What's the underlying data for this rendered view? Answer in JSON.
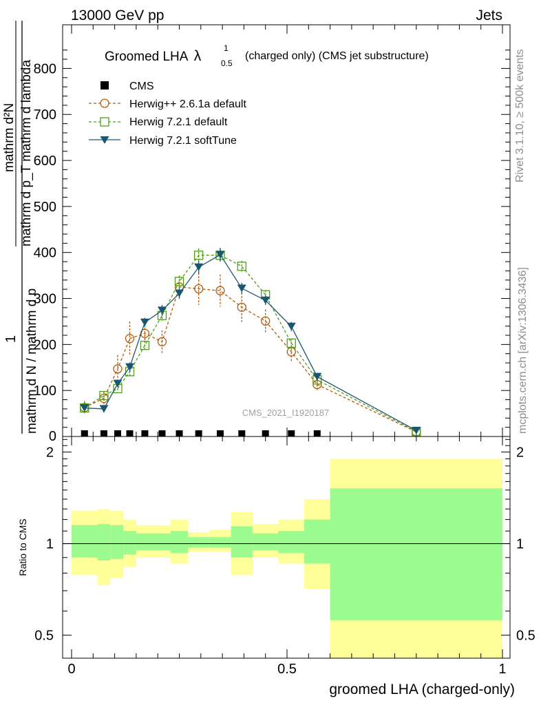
{
  "header": {
    "left": "13000 GeV pp",
    "right": "Jets"
  },
  "side_labels": {
    "top": "Rivet 3.1.10, ≥ 500k events",
    "bottom": "mcplots.cern.ch [arXiv:1306.3436]"
  },
  "watermark": "CMS_2021_I1920187",
  "colors": {
    "herwig_old": "#b25a0a",
    "herwig_default": "#4d9e16",
    "herwig_soft": "#1b5670",
    "band_inner": "#9cfb8e",
    "band_outer": "#ffff99"
  },
  "chart_data": [
    {
      "type": "line",
      "panel": "main",
      "title": {
        "main": "Groomed LHA",
        "symbol": "λ",
        "sup": "1",
        "sub": "0.5",
        "suffix": "(charged only) (CMS jet substructure)"
      },
      "xlabel": "groomed LHA (charged-only)",
      "ylabel": {
        "numerator": "1",
        "denominator": "mathrm d N / mathrm d p",
        "deriv_top": "mathrm d²N",
        "deriv_bottom": "mathrm d p_T mathrm d lambda"
      },
      "xlim": [
        0,
        1
      ],
      "ylim": [
        0,
        900
      ],
      "yticks": [
        "100",
        "200",
        "300",
        "400",
        "500",
        "600",
        "700",
        "800"
      ],
      "ytick_values": [
        100,
        200,
        300,
        400,
        500,
        600,
        700,
        800
      ],
      "series": [
        {
          "name": "CMS",
          "marker": "square",
          "color": "#000000",
          "x": [
            0.03,
            0.075,
            0.107,
            0.135,
            0.17,
            0.21,
            0.25,
            0.295,
            0.345,
            0.395,
            0.45,
            0.51,
            0.57
          ],
          "y": [
            0,
            0,
            0,
            0,
            0,
            0,
            0,
            0,
            0,
            0,
            0,
            0,
            0
          ],
          "err": [
            0,
            0,
            0,
            0,
            0,
            0,
            0,
            0,
            0,
            0,
            0,
            0,
            0
          ]
        },
        {
          "name": "Herwig++ 2.6.1a default",
          "marker": "circle",
          "color": "#b25a0a",
          "dashed": true,
          "x": [
            0.03,
            0.075,
            0.107,
            0.135,
            0.17,
            0.21,
            0.25,
            0.295,
            0.345,
            0.395,
            0.45,
            0.51,
            0.57,
            0.8
          ],
          "y": [
            63,
            83,
            147,
            213,
            224,
            206,
            325,
            321,
            317,
            281,
            251,
            184,
            113,
            10
          ],
          "err": [
            14,
            14,
            30,
            37,
            20,
            25,
            25,
            35,
            35,
            32,
            25,
            22,
            15,
            3
          ]
        },
        {
          "name": "Herwig 7.2.1 default",
          "marker": "open-square",
          "color": "#4d9e16",
          "dashed": true,
          "x": [
            0.03,
            0.075,
            0.107,
            0.135,
            0.17,
            0.21,
            0.25,
            0.295,
            0.345,
            0.395,
            0.45,
            0.51,
            0.57,
            0.8
          ],
          "y": [
            62,
            89,
            104,
            141,
            198,
            263,
            337,
            394,
            394,
            370,
            308,
            203,
            123,
            11
          ],
          "err": [
            6,
            8,
            8,
            10,
            10,
            12,
            12,
            15,
            15,
            12,
            10,
            10,
            8,
            2
          ]
        },
        {
          "name": "Herwig 7.2.1 softTune",
          "marker": "triangle-down",
          "color": "#1b5670",
          "dashed": false,
          "x": [
            0.03,
            0.075,
            0.107,
            0.135,
            0.17,
            0.21,
            0.25,
            0.295,
            0.345,
            0.395,
            0.45,
            0.51,
            0.57,
            0.8
          ],
          "y": [
            62,
            60,
            115,
            151,
            248,
            274,
            311,
            368,
            395,
            322,
            296,
            239,
            130,
            13
          ],
          "err": [
            5,
            8,
            8,
            10,
            10,
            12,
            12,
            14,
            15,
            12,
            10,
            10,
            8,
            2
          ]
        }
      ]
    },
    {
      "type": "area",
      "panel": "ratio",
      "ylabel": "Ratio to CMS",
      "xlim": [
        0,
        1
      ],
      "ylim": [
        0.42,
        2.25
      ],
      "log_y": true,
      "yticks_left": [
        "0.5",
        "1",
        "2"
      ],
      "yticks_right": [
        "0.5",
        "1",
        "2"
      ],
      "ytick_values": [
        0.5,
        1,
        2
      ],
      "xticks": [
        "0",
        "0.5",
        "1"
      ],
      "xtick_values": [
        0,
        0.5,
        1
      ],
      "bins": [
        {
          "x0": 0.0,
          "x1": 0.06,
          "outer": [
            0.79,
            1.28
          ],
          "inner": [
            0.9,
            1.15
          ]
        },
        {
          "x0": 0.06,
          "x1": 0.09,
          "outer": [
            0.73,
            1.3
          ],
          "inner": [
            0.88,
            1.16
          ]
        },
        {
          "x0": 0.09,
          "x1": 0.12,
          "outer": [
            0.77,
            1.28
          ],
          "inner": [
            0.89,
            1.15
          ]
        },
        {
          "x0": 0.12,
          "x1": 0.15,
          "outer": [
            0.84,
            1.2
          ],
          "inner": [
            0.92,
            1.1
          ]
        },
        {
          "x0": 0.15,
          "x1": 0.19,
          "outer": [
            0.9,
            1.15
          ],
          "inner": [
            0.95,
            1.08
          ]
        },
        {
          "x0": 0.19,
          "x1": 0.23,
          "outer": [
            0.9,
            1.15
          ],
          "inner": [
            0.95,
            1.08
          ]
        },
        {
          "x0": 0.23,
          "x1": 0.27,
          "outer": [
            0.86,
            1.2
          ],
          "inner": [
            0.93,
            1.1
          ]
        },
        {
          "x0": 0.27,
          "x1": 0.32,
          "outer": [
            0.94,
            1.09
          ],
          "inner": [
            0.97,
            1.05
          ]
        },
        {
          "x0": 0.32,
          "x1": 0.37,
          "outer": [
            0.94,
            1.11
          ],
          "inner": [
            0.97,
            1.05
          ]
        },
        {
          "x0": 0.37,
          "x1": 0.42,
          "outer": [
            0.79,
            1.27
          ],
          "inner": [
            0.9,
            1.14
          ]
        },
        {
          "x0": 0.42,
          "x1": 0.48,
          "outer": [
            0.9,
            1.16
          ],
          "inner": [
            0.95,
            1.08
          ]
        },
        {
          "x0": 0.48,
          "x1": 0.54,
          "outer": [
            0.86,
            1.2
          ],
          "inner": [
            0.93,
            1.1
          ]
        },
        {
          "x0": 0.54,
          "x1": 0.6,
          "outer": [
            0.71,
            1.4
          ],
          "inner": [
            0.86,
            1.2
          ]
        },
        {
          "x0": 0.6,
          "x1": 1.0,
          "outer": [
            0.42,
            1.9
          ],
          "inner": [
            0.56,
            1.52
          ]
        }
      ]
    }
  ]
}
